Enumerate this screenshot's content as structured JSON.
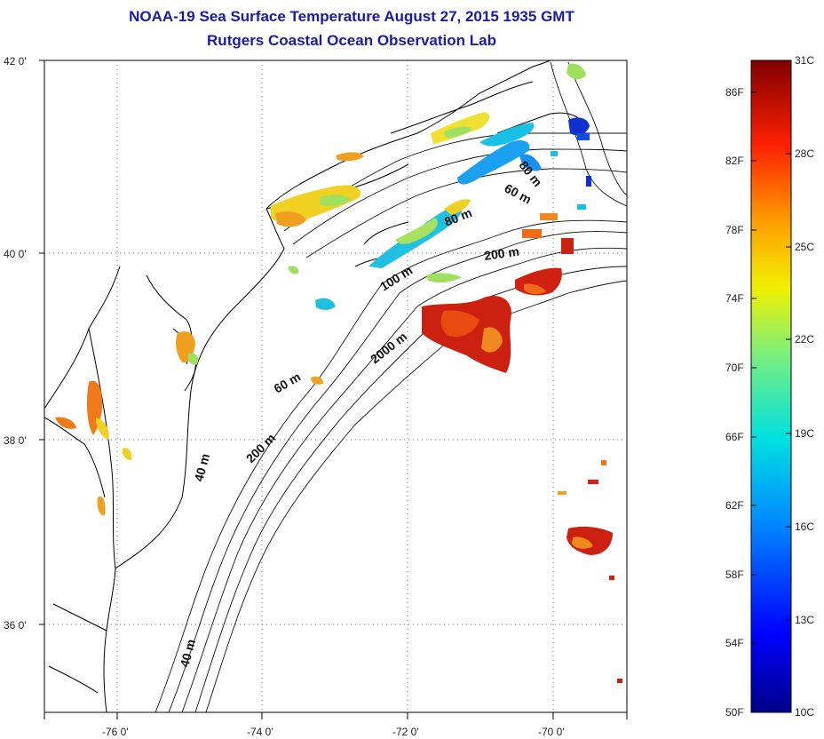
{
  "title": "NOAA-19 Sea Surface Temperature August 27, 2015 1935 GMT",
  "subtitle": "Rutgers Coastal Ocean Observation Lab",
  "lat_labels": [
    "42 0'",
    "40 0'",
    "38 0'",
    "36 0'"
  ],
  "lon_labels": [
    "-76 0'",
    "-74 0'",
    "-72 0'",
    "-70 0'"
  ],
  "colorbar": {
    "fahrenheit": [
      "86F",
      "82F",
      "78F",
      "74F",
      "70F",
      "66F",
      "62F",
      "58F",
      "54F",
      "50F"
    ],
    "celsius": [
      "31C",
      "28C",
      "25C",
      "22C",
      "19C",
      "16C",
      "13C",
      "10C"
    ]
  },
  "isobaths": [
    "80 m",
    "60 m",
    "80 m",
    "200 m",
    "100 m",
    "2000 m",
    "60 m",
    "200 m",
    "40 m",
    "40 m"
  ],
  "colors": {
    "title": "#1a1aa8",
    "warm": "#d01c0c",
    "mid": "#f0d020",
    "cool": "#16b4e8",
    "cold": "#1030d0"
  }
}
